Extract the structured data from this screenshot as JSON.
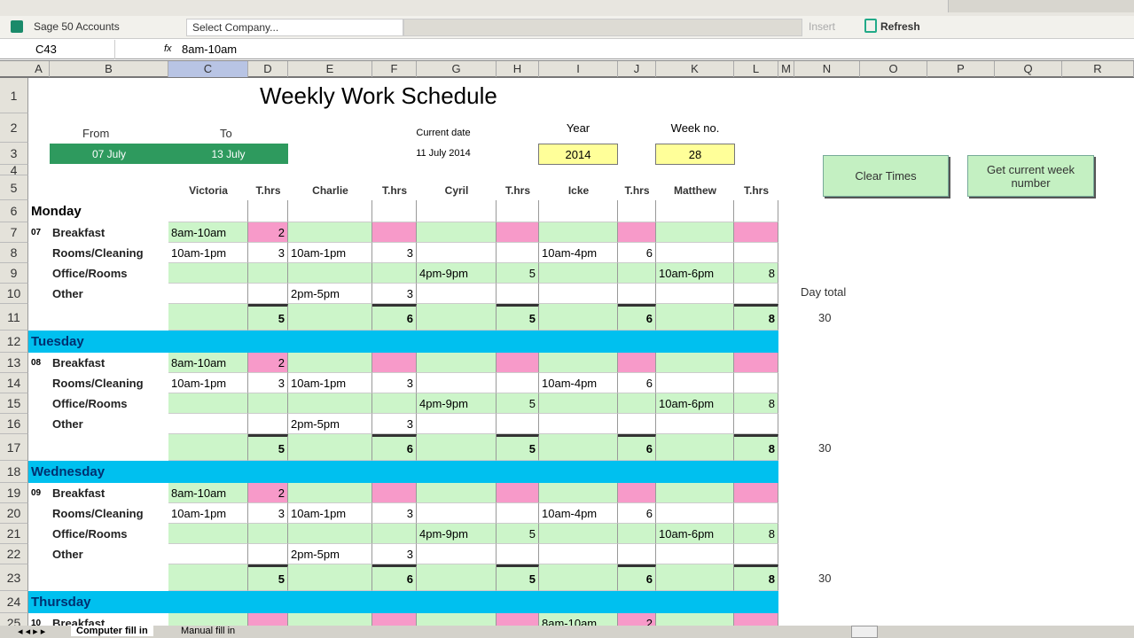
{
  "toolbar": {
    "sage": "Sage 50 Accounts",
    "company": "Select Company...",
    "insert": "Insert",
    "refresh": "Refresh"
  },
  "formula": {
    "cell_ref": "C43",
    "fx": "fx",
    "value": "8am-10am"
  },
  "columns": [
    "A",
    "B",
    "C",
    "D",
    "E",
    "F",
    "G",
    "H",
    "I",
    "J",
    "K",
    "L",
    "M",
    "N",
    "O",
    "P",
    "Q",
    "R"
  ],
  "title": "Weekly Work Schedule",
  "header": {
    "from_label": "From",
    "to_label": "To",
    "from_value": "07  July",
    "to_value": "13  July",
    "current_date_label": "Current date",
    "current_date": "11 July 2014",
    "year_label": "Year",
    "year": "2014",
    "week_label": "Week no.",
    "week": "28"
  },
  "buttons": {
    "clear": "Clear Times",
    "week": "Get current week number"
  },
  "staff_headers": [
    "Victoria",
    "T.hrs",
    "Charlie",
    "T.hrs",
    "Cyril",
    "T.hrs",
    "Icke",
    "T.hrs",
    "Matthew",
    "T.hrs"
  ],
  "day_total_label": "Day total",
  "days": [
    {
      "name": "Monday",
      "num": "07",
      "total": "30",
      "tasks": [
        {
          "label": "Breakfast",
          "cells": [
            "8am-10am",
            "2",
            "",
            "",
            "",
            "",
            "",
            "",
            "",
            ""
          ]
        },
        {
          "label": "Rooms/Cleaning",
          "cells": [
            "10am-1pm",
            "3",
            "10am-1pm",
            "3",
            "",
            "",
            "10am-4pm",
            "6",
            "",
            ""
          ]
        },
        {
          "label": "Office/Rooms",
          "cells": [
            "",
            "",
            "",
            "",
            "4pm-9pm",
            "5",
            "",
            "",
            "10am-6pm",
            "8"
          ]
        },
        {
          "label": "Other",
          "cells": [
            "",
            "",
            "2pm-5pm",
            "3",
            "",
            "",
            "",
            "",
            "",
            ""
          ]
        }
      ],
      "totals": [
        "5",
        "6",
        "5",
        "6",
        "8"
      ]
    },
    {
      "name": "Tuesday",
      "num": "08",
      "total": "30",
      "tasks": [
        {
          "label": "Breakfast",
          "cells": [
            "8am-10am",
            "2",
            "",
            "",
            "",
            "",
            "",
            "",
            "",
            ""
          ]
        },
        {
          "label": "Rooms/Cleaning",
          "cells": [
            "10am-1pm",
            "3",
            "10am-1pm",
            "3",
            "",
            "",
            "10am-4pm",
            "6",
            "",
            ""
          ]
        },
        {
          "label": "Office/Rooms",
          "cells": [
            "",
            "",
            "",
            "",
            "4pm-9pm",
            "5",
            "",
            "",
            "10am-6pm",
            "8"
          ]
        },
        {
          "label": "Other",
          "cells": [
            "",
            "",
            "2pm-5pm",
            "3",
            "",
            "",
            "",
            "",
            "",
            ""
          ]
        }
      ],
      "totals": [
        "5",
        "6",
        "5",
        "6",
        "8"
      ]
    },
    {
      "name": "Wednesday",
      "num": "09",
      "total": "30",
      "tasks": [
        {
          "label": "Breakfast",
          "cells": [
            "8am-10am",
            "2",
            "",
            "",
            "",
            "",
            "",
            "",
            "",
            ""
          ]
        },
        {
          "label": "Rooms/Cleaning",
          "cells": [
            "10am-1pm",
            "3",
            "10am-1pm",
            "3",
            "",
            "",
            "10am-4pm",
            "6",
            "",
            ""
          ]
        },
        {
          "label": "Office/Rooms",
          "cells": [
            "",
            "",
            "",
            "",
            "4pm-9pm",
            "5",
            "",
            "",
            "10am-6pm",
            "8"
          ]
        },
        {
          "label": "Other",
          "cells": [
            "",
            "",
            "2pm-5pm",
            "3",
            "",
            "",
            "",
            "",
            "",
            ""
          ]
        }
      ],
      "totals": [
        "5",
        "6",
        "5",
        "6",
        "8"
      ]
    },
    {
      "name": "Thursday",
      "num": "10",
      "tasks": [
        {
          "label": "Breakfast",
          "cells": [
            "",
            "",
            "",
            "",
            "",
            "",
            "8am-10am",
            "2",
            "",
            ""
          ]
        }
      ]
    }
  ],
  "sheet_tabs": [
    "Computer fill in",
    "Manual fill in"
  ],
  "colors": {
    "green": "#ccf5c9",
    "pink": "#f79ac9",
    "blue": "#00c0ef",
    "dark_green": "#2e9a5e",
    "yellow": "#ffff99"
  }
}
